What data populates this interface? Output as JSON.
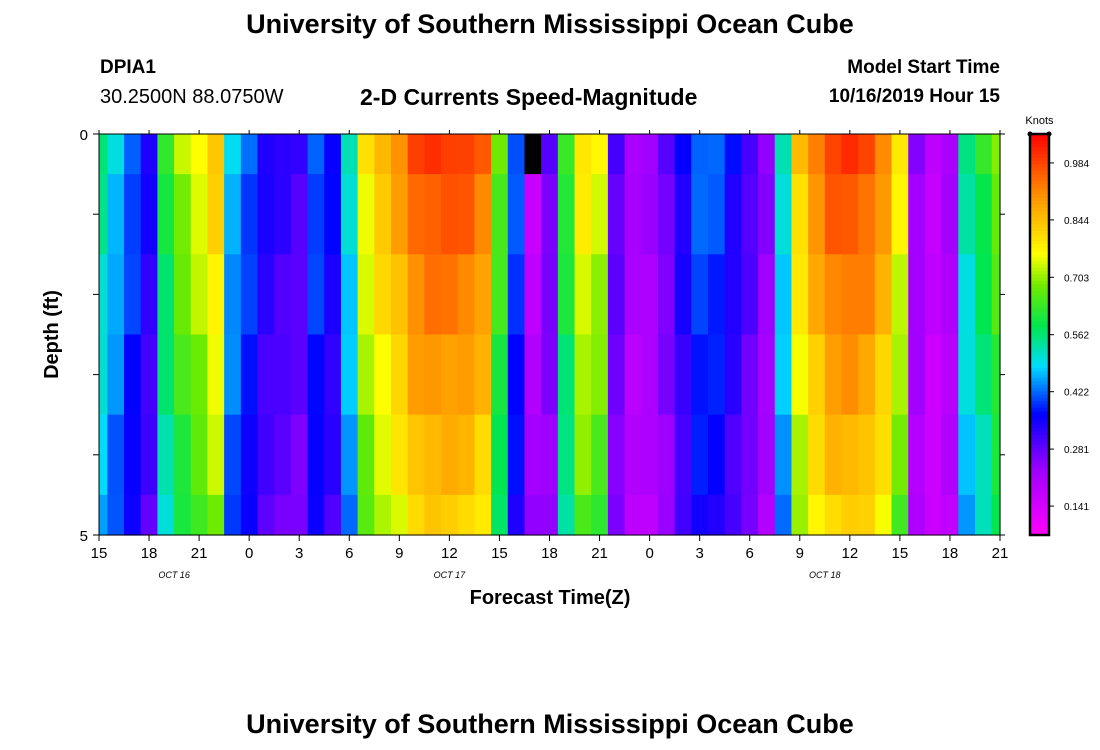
{
  "page": {
    "title_top": "University of Southern Mississippi Ocean Cube",
    "title_bottom": "University of Southern Mississippi Ocean Cube",
    "station": "DPIA1",
    "coordinates": "30.2500N 88.0750W",
    "plot_title": "2-D Currents Speed-Magnitude",
    "model_label": "Model Start Time",
    "model_time": "10/16/2019 Hour 15"
  },
  "chart_data": {
    "type": "heatmap",
    "title": "2-D Currents Speed-Magnitude",
    "xlabel": "Forecast Time(Z)",
    "ylabel": "Depth (ft)",
    "x_ticks": [
      "15",
      "18",
      "21",
      "0",
      "3",
      "6",
      "9",
      "12",
      "15",
      "18",
      "21",
      "0",
      "3",
      "6",
      "9",
      "12",
      "15",
      "18",
      "21"
    ],
    "x_range_hours": [
      0,
      54
    ],
    "y_ticks": [
      "0",
      "5"
    ],
    "ylim": [
      0,
      5
    ],
    "date_labels": [
      {
        "text": "OCT 16",
        "hour": 4.5
      },
      {
        "text": "OCT 17",
        "hour": 21
      },
      {
        "text": "OCT 18",
        "hour": 43.5
      }
    ],
    "colorbar": {
      "label": "Knots",
      "ticks": [
        "0.141",
        "0.281",
        "0.422",
        "0.562",
        "0.703",
        "0.844",
        "0.984"
      ],
      "range": [
        0.07,
        1.055
      ]
    },
    "depth_bands_ft": [
      0,
      0.5,
      1.5,
      2.5,
      3.5,
      4.5,
      5
    ],
    "hours": [
      0,
      1,
      2,
      3,
      4,
      5,
      6,
      7,
      8,
      9,
      10,
      11,
      12,
      13,
      14,
      15,
      16,
      17,
      18,
      19,
      20,
      21,
      22,
      23,
      24,
      25,
      26,
      27,
      28,
      29,
      30,
      31,
      32,
      33,
      34,
      35,
      36,
      37,
      38,
      39,
      40,
      41,
      42,
      43,
      44,
      45,
      46,
      47,
      48,
      49,
      50,
      51,
      52,
      53,
      54
    ],
    "surface_speed_knots": [
      0.56,
      0.49,
      0.42,
      0.35,
      0.62,
      0.72,
      0.77,
      0.84,
      0.48,
      0.42,
      0.35,
      0.33,
      0.31,
      0.42,
      0.37,
      0.52,
      0.79,
      0.86,
      0.91,
      0.98,
      1.0,
      1.0,
      0.99,
      0.95,
      0.68,
      0.42,
      null,
      0.28,
      0.64,
      0.8,
      0.76,
      0.3,
      0.22,
      0.23,
      0.28,
      0.36,
      0.43,
      0.42,
      0.36,
      0.31,
      0.25,
      0.52,
      0.84,
      0.93,
      0.99,
      1.0,
      0.98,
      0.92,
      0.79,
      0.24,
      0.18,
      0.22,
      0.55,
      0.62,
      0.7
    ],
    "notes": "Dark gap near hour 25 at the surface indicates missing data."
  }
}
